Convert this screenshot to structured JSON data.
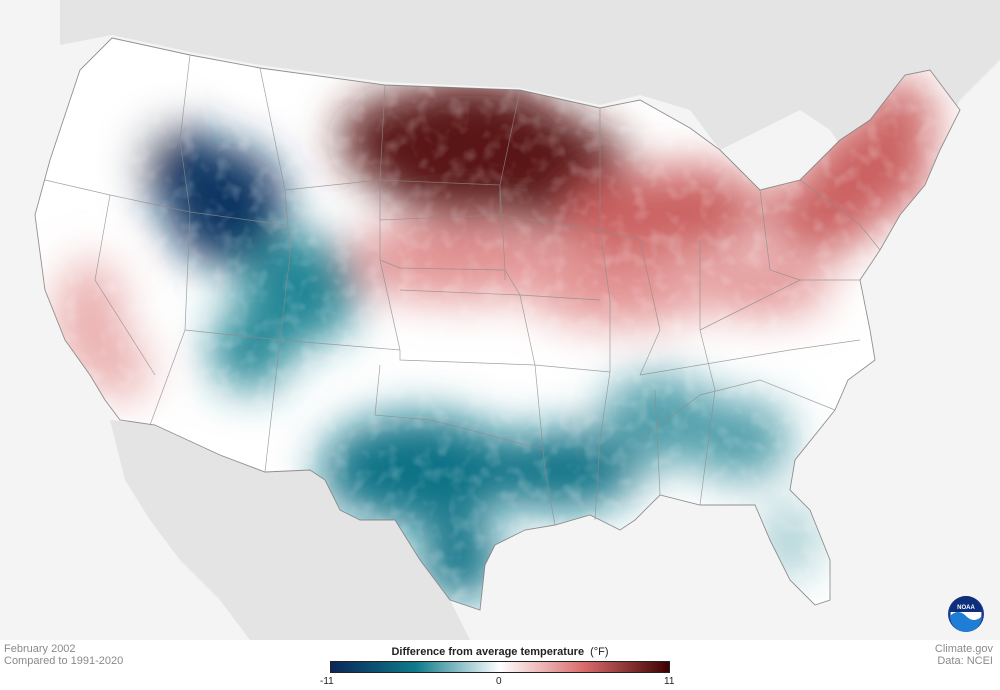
{
  "footer": {
    "period": "February 2002",
    "baseline": "Compared to 1991-2020",
    "credit": "Climate.gov",
    "source": "Data: NCEI"
  },
  "legend": {
    "title": "Difference from average temperature",
    "unit": "(°F)",
    "min_label": "-11",
    "mid_label": "0",
    "max_label": "11",
    "colors": [
      "#0b2659",
      "#0e7a8a",
      "#ffffff",
      "#d96a6a",
      "#3e0000"
    ]
  },
  "logo": {
    "text": "NOAA",
    "icon": "noaa-logo-icon"
  },
  "map": {
    "background": "#f4f4f4",
    "neighbor_land": "#e4e4e4",
    "water": "#f4f4f4",
    "anomaly_regions": [
      {
        "region": "Upper Midwest / Northern Plains",
        "anomaly_f": 10
      },
      {
        "region": "Northeast",
        "anomaly_f": 6
      },
      {
        "region": "Great Lakes",
        "anomaly_f": 6
      },
      {
        "region": "Central Plains",
        "anomaly_f": 4
      },
      {
        "region": "Idaho / Wyoming / Utah",
        "anomaly_f": -10
      },
      {
        "region": "Colorado / Four Corners",
        "anomaly_f": -5
      },
      {
        "region": "Texas / Gulf Coast",
        "anomaly_f": -6
      },
      {
        "region": "Southeast",
        "anomaly_f": -4
      },
      {
        "region": "Florida",
        "anomaly_f": -2
      },
      {
        "region": "California",
        "anomaly_f": 3
      },
      {
        "region": "Pacific Northwest",
        "anomaly_f": 0
      }
    ]
  }
}
